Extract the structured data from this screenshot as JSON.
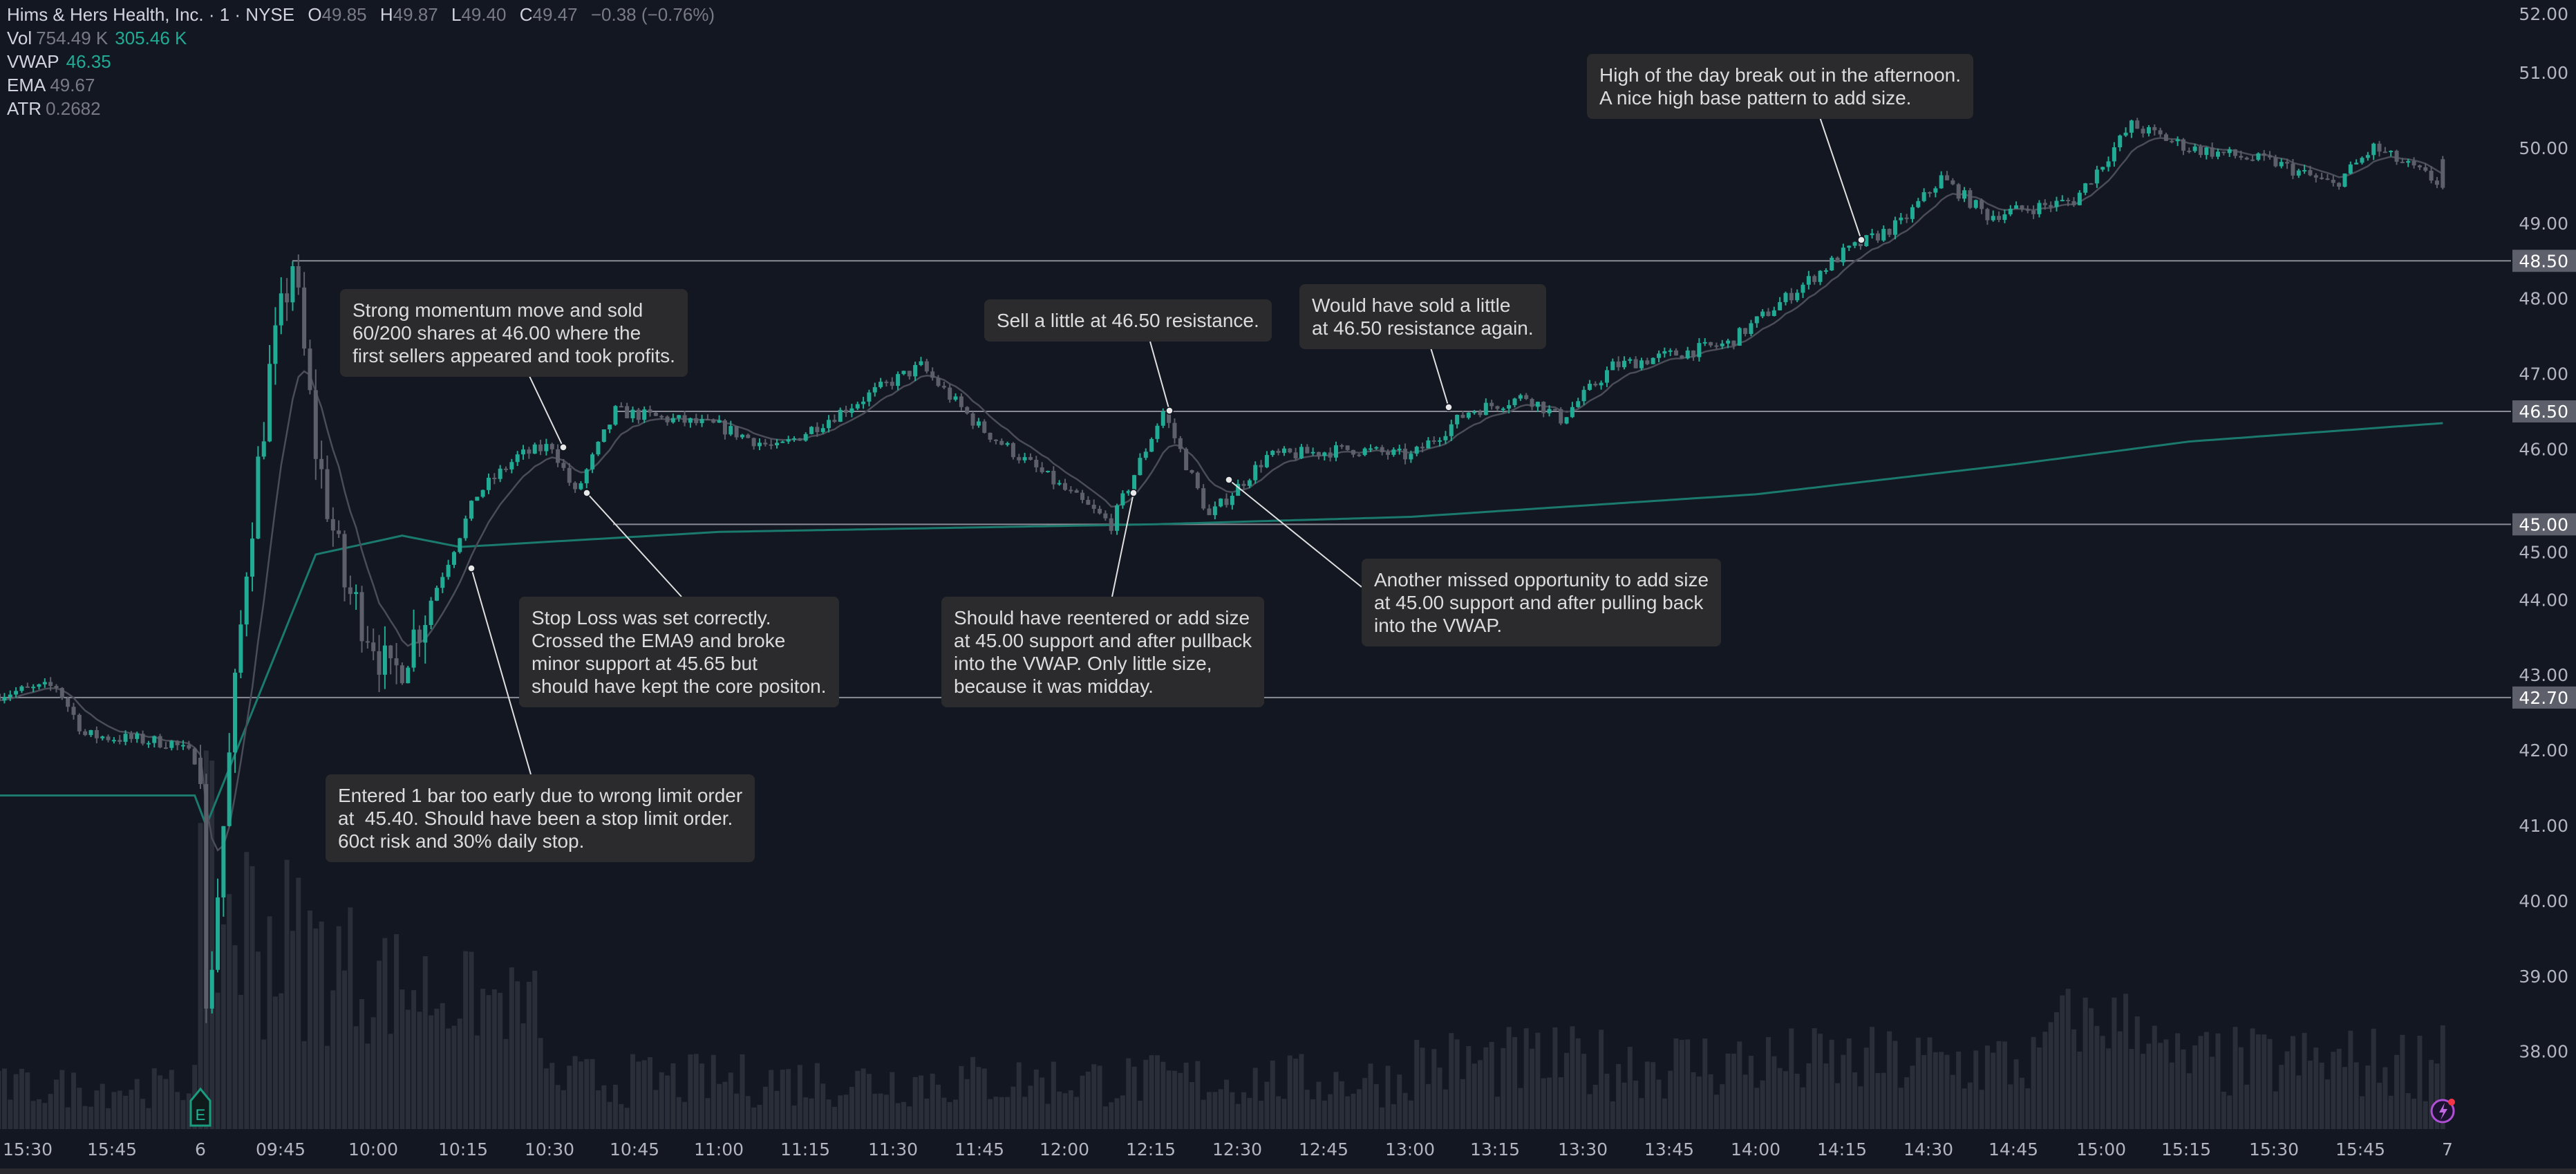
{
  "legend": {
    "symbol_line": "Hims & Hers Health, Inc. · 1 · NYSE",
    "open_label": "O",
    "open": "49.85",
    "high_label": "H",
    "high": "49.87",
    "low_label": "L",
    "low": "49.40",
    "close_label": "C",
    "close": "49.47",
    "change": "−0.38 (−0.76%)",
    "vol_label": "Vol",
    "vol_avg": "754.49 K",
    "vol_value": "305.46 K",
    "vwap_label": "VWAP",
    "vwap_value": "46.35",
    "ema_label": "EMA",
    "ema_value": "49.67",
    "atr_label": "ATR",
    "atr_value": "0.2682"
  },
  "colors": {
    "background": "#131722",
    "up": "#22ab94",
    "down": "#5d606b",
    "vwap": "#1b7a6e",
    "ema": "#4a4d57",
    "level_line": "#8a8d96",
    "annotation_bg": "#2b2b2d",
    "volume": "#2a2e39"
  },
  "chart_data": {
    "type": "candlestick",
    "title": "",
    "y_axis": {
      "ticks": [
        "52.00",
        "51.00",
        "50.00",
        "49.00",
        "48.00",
        "47.00",
        "46.00",
        "45.00",
        "44.00",
        "43.00",
        "42.00",
        "41.00",
        "40.00",
        "39.00",
        "38.00"
      ],
      "range": [
        37,
        52
      ]
    },
    "x_axis": {
      "ticks": [
        "15:30",
        "15:45",
        "6",
        "09:45",
        "10:00",
        "10:15",
        "10:30",
        "10:45",
        "11:00",
        "11:15",
        "11:30",
        "11:45",
        "12:00",
        "12:15",
        "12:30",
        "12:45",
        "13:00",
        "13:15",
        "13:30",
        "13:45",
        "14:00",
        "14:15",
        "14:30",
        "14:45",
        "15:00",
        "15:15",
        "15:30",
        "15:45",
        "7"
      ]
    },
    "price_levels": [
      "48.50",
      "46.50",
      "45.00",
      "42.70"
    ],
    "approx_price_path": [
      [
        "15:25",
        42.75
      ],
      [
        "15:35",
        42.85
      ],
      [
        "15:40",
        42.2
      ],
      [
        "15:55",
        42.1
      ],
      [
        "16:00",
        41.9
      ],
      [
        "09:30",
        41.9
      ],
      [
        "09:31",
        38.4
      ],
      [
        "09:34",
        41.0
      ],
      [
        "09:38",
        44.5
      ],
      [
        "09:42",
        47.0
      ],
      [
        "09:46",
        48.5
      ],
      [
        "09:50",
        46.0
      ],
      [
        "09:55",
        44.2
      ],
      [
        "10:00",
        43.5
      ],
      [
        "10:03",
        42.9
      ],
      [
        "10:10",
        44.0
      ],
      [
        "10:18",
        45.4
      ],
      [
        "10:25",
        45.9
      ],
      [
        "10:31",
        46.05
      ],
      [
        "10:35",
        45.4
      ],
      [
        "10:42",
        46.5
      ],
      [
        "11:00",
        46.3
      ],
      [
        "11:10",
        46.0
      ],
      [
        "11:30",
        46.9
      ],
      [
        "11:35",
        47.1
      ],
      [
        "11:45",
        46.3
      ],
      [
        "12:08",
        45.0
      ],
      [
        "12:17",
        46.5
      ],
      [
        "12:25",
        45.1
      ],
      [
        "12:35",
        45.9
      ],
      [
        "12:50",
        46.0
      ],
      [
        "13:00",
        45.9
      ],
      [
        "13:10",
        46.5
      ],
      [
        "13:20",
        46.7
      ],
      [
        "13:26",
        46.4
      ],
      [
        "13:35",
        47.1
      ],
      [
        "13:55",
        47.4
      ],
      [
        "14:15",
        48.6
      ],
      [
        "14:25",
        49.0
      ],
      [
        "14:32",
        49.6
      ],
      [
        "14:40",
        49.1
      ],
      [
        "14:55",
        49.3
      ],
      [
        "15:05",
        50.3
      ],
      [
        "15:15",
        50.0
      ],
      [
        "15:30",
        49.8
      ],
      [
        "15:40",
        49.5
      ],
      [
        "15:47",
        50.0
      ],
      [
        "16:00",
        49.47
      ]
    ],
    "approx_vwap_path": [
      [
        "prev",
        41.4
      ],
      [
        "09:31",
        41.0
      ],
      [
        "09:50",
        44.6
      ],
      [
        "10:05",
        44.85
      ],
      [
        "10:15",
        44.7
      ],
      [
        "11:00",
        44.9
      ],
      [
        "12:15",
        45.0
      ],
      [
        "13:00",
        45.1
      ],
      [
        "14:00",
        45.4
      ],
      [
        "14:45",
        45.8
      ],
      [
        "15:15",
        46.1
      ],
      [
        "16:00",
        46.35
      ]
    ]
  },
  "annotations": [
    {
      "text": "Strong momentum move and sold\n60/200 shares at 46.00 where the\nfirst sellers appeared and took profits.",
      "point_price": 46.0
    },
    {
      "text": "Stop Loss was set correctly.\nCrossed the EMA9 and broke\nminor support at 45.65 but\nshould have kept the core positon.",
      "point_price": 45.4
    },
    {
      "text": "Entered 1 bar too early due to wrong limit order\nat  45.40. Should have been a stop limit order.\n60ct risk and 30% daily stop.",
      "point_price": 45.4
    },
    {
      "text": "Sell a little at 46.50 resistance.",
      "point_price": 46.5
    },
    {
      "text": "Should have reentered or add size\nat 45.00 support and after pullback\ninto the VWAP. Only little size,\nbecause it was midday.",
      "point_price": 45.4
    },
    {
      "text": "Would have sold a little\nat 46.50 resistance again.",
      "point_price": 46.5
    },
    {
      "text": "Another missed opportunity to add size\nat 45.00 support and after pulling back\ninto the VWAP.",
      "point_price": 45.6
    },
    {
      "text": "High of the day break out in the afternoon.\nA nice high base pattern to add size.",
      "point_price": 48.75
    }
  ],
  "markers": {
    "earnings": "E",
    "earnings_icon": "earnings-flag-icon",
    "alert_icon": "lightning-badge-icon"
  }
}
